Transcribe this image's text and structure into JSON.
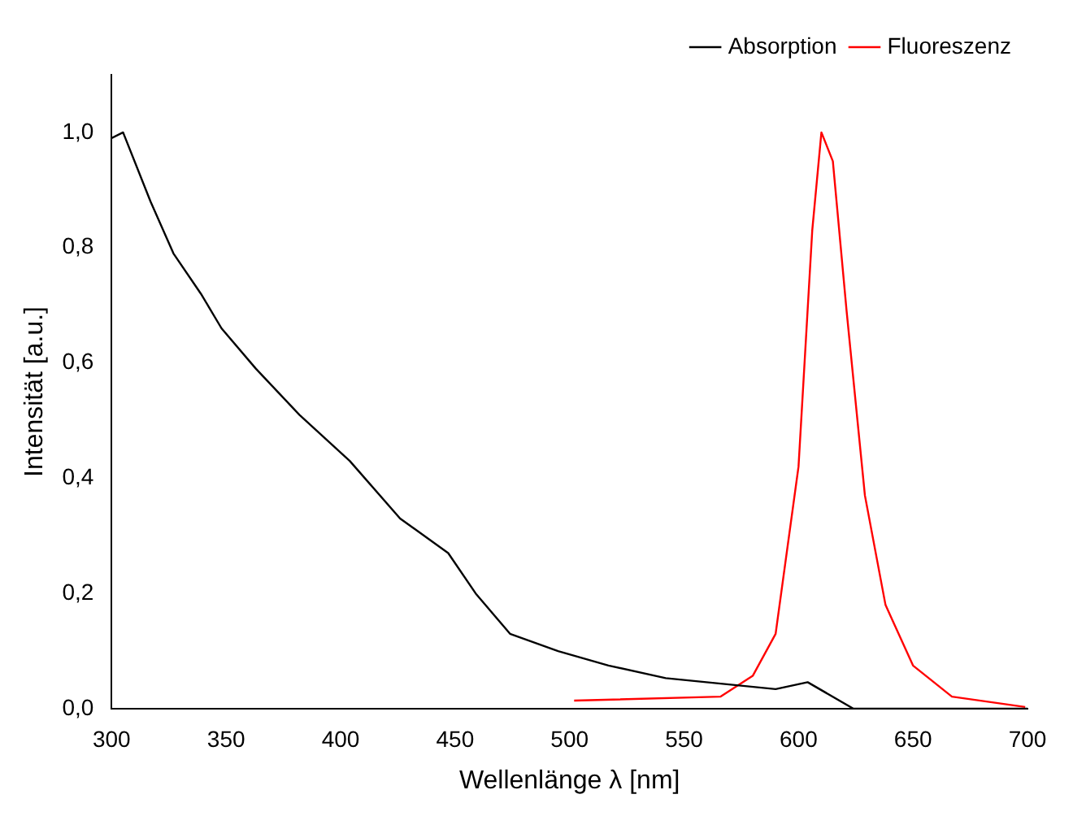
{
  "chart_data": {
    "type": "line",
    "xlabel": "Wellenlänge λ [nm]",
    "ylabel": "Intensität [a.u.]",
    "xlim": [
      300,
      700
    ],
    "xticks": [
      300,
      350,
      400,
      450,
      500,
      550,
      600,
      650,
      700
    ],
    "ylim": [
      0,
      1.1
    ],
    "yticks": [
      {
        "value": 0,
        "label": "0,0"
      },
      {
        "value": 0.2,
        "label": "0,2"
      },
      {
        "value": 0.4,
        "label": "0,4"
      },
      {
        "value": 0.6,
        "label": "0,6"
      },
      {
        "value": 0.8,
        "label": "0,8"
      },
      {
        "value": 1.0,
        "label": "1,0"
      }
    ],
    "grid": false,
    "legend": "top right",
    "marker": "none",
    "line_style": "solid",
    "series": [
      {
        "name": "Absorption",
        "color": "#000000",
        "x": [
          300,
          305,
          317,
          327,
          339,
          348,
          363,
          382,
          404,
          426,
          447,
          459,
          474,
          495,
          517,
          542,
          590,
          604,
          624,
          650,
          700
        ],
        "values": [
          0.99,
          1.0,
          0.88,
          0.79,
          0.72,
          0.66,
          0.59,
          0.51,
          0.43,
          0.33,
          0.27,
          0.2,
          0.13,
          0.1,
          0.075,
          0.053,
          0.034,
          0.046,
          0.0,
          0.0,
          0.0
        ]
      },
      {
        "name": "Fluoreszenz",
        "color": "#ff0000",
        "x": [
          502,
          566,
          580,
          590,
          600,
          606,
          610,
          615,
          621,
          629,
          638,
          650,
          667,
          699
        ],
        "values": [
          0.014,
          0.021,
          0.057,
          0.13,
          0.42,
          0.83,
          1.0,
          0.95,
          0.69,
          0.37,
          0.18,
          0.075,
          0.021,
          0.003
        ]
      }
    ]
  }
}
